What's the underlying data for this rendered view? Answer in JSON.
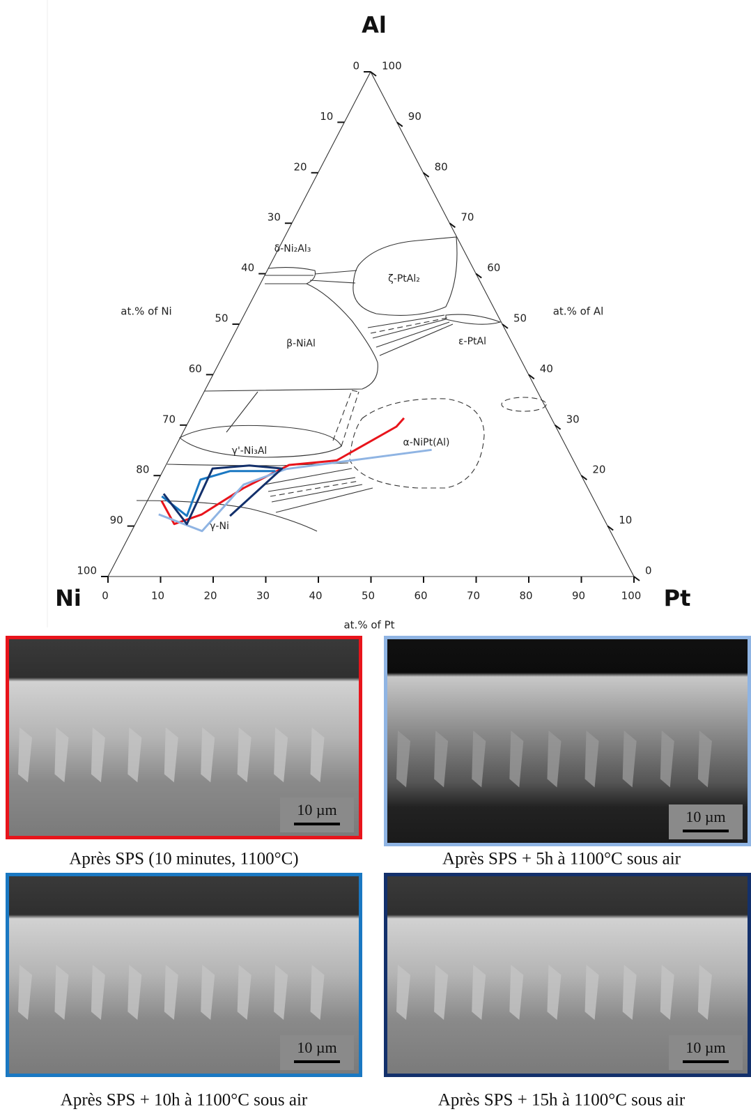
{
  "chart_data": {
    "type": "ternary",
    "corners": {
      "top": "Al",
      "left": "Ni",
      "right": "Pt"
    },
    "axis_labels": {
      "left": "at.% of Ni",
      "right": "at.% of Al",
      "bottom": "at.% of Pt"
    },
    "left_ticks": [
      0,
      10,
      20,
      30,
      40,
      50,
      60,
      70,
      80,
      90,
      100
    ],
    "right_ticks": [
      0,
      10,
      20,
      30,
      40,
      50,
      60,
      70,
      80,
      90,
      100
    ],
    "bottom_ticks": [
      0,
      10,
      20,
      30,
      40,
      50,
      60,
      70,
      80,
      90,
      100
    ],
    "phase_labels": [
      "δ-Ni₂Al₃",
      "ζ-PtAl₂",
      "β-NiAl",
      "ε-PtAl",
      "α-NiPt(Al)",
      "γ'-Ni₃Al",
      "γ-Ni"
    ],
    "series": [
      {
        "color": "#e8141b",
        "x": [
          2.7,
          7.4,
          11.7,
          17,
          23.4,
          32,
          40,
          40.6
        ],
        "values": [
          15,
          10.4,
          12.3,
          17.5,
          22.1,
          23,
          29.7,
          31.4
        ]
      },
      {
        "color": "#8fb4e3",
        "x": [
          3.5,
          13.4,
          16.7,
          23.2,
          49
        ],
        "values": [
          12.3,
          9,
          18.2,
          21.3,
          25.1
        ]
      },
      {
        "color": "#1a78c2",
        "x": [
          2.3,
          9,
          8,
          12.8,
          21.4
        ],
        "values": [
          15.9,
          12,
          19.2,
          20.9,
          20.9
        ]
      },
      {
        "color": "#13306b",
        "x": [
          2.4,
          9.8,
          9.2,
          15.9,
          22.4,
          17.2
        ],
        "values": [
          16.4,
          10.4,
          21.4,
          22,
          21.4,
          12
        ]
      }
    ]
  },
  "panels": [
    {
      "caption": "Après SPS (10 minutes, 1100°C)",
      "scale": "10 µm",
      "color": "#e8141b"
    },
    {
      "caption": "Après SPS + 5h à 1100°C sous air",
      "scale": "10 µm",
      "color": "#8fb4e3"
    },
    {
      "caption": "Après SPS + 10h à 1100°C sous air",
      "scale": "10 µm",
      "color": "#1a78c2"
    },
    {
      "caption": "Après SPS + 15h à 1100°C sous air",
      "scale": "10 µm",
      "color": "#13306b"
    }
  ]
}
